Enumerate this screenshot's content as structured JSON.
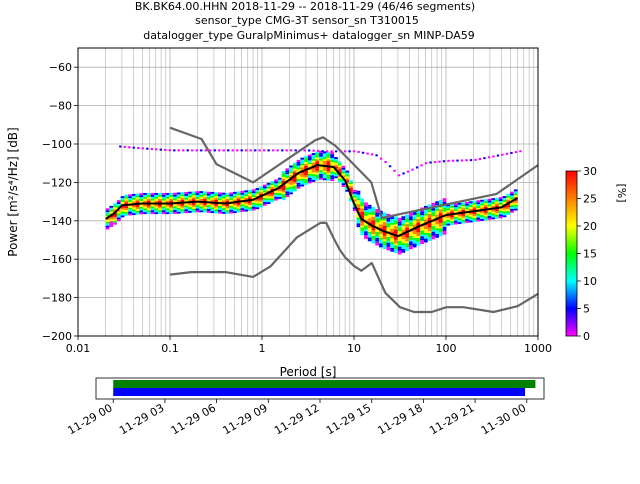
{
  "figure": {
    "title_lines": [
      "BK.BK64.00.HHN   2018-11-29 -- 2018-11-29  (46/46 segments)",
      "sensor_type CMG-3T sensor_sn T310015",
      "datalogger_type GuralpMinimus+ datalogger_sn MINP-DA59"
    ]
  },
  "chart_data": [
    {
      "type": "heatmap",
      "title": "BK.BK64.00.HHN   2018-11-29 -- 2018-11-29  (46/46 segments)",
      "xlabel": "Period [s]",
      "ylabel": "Power [m²/s⁴/Hz] [dB]",
      "x_scale": "log",
      "xlim": [
        0.01,
        1000
      ],
      "ylim": [
        -200,
        -50
      ],
      "x_ticks": [
        0.01,
        0.1,
        1,
        10,
        100,
        1000
      ],
      "x_tick_labels": [
        "0.01",
        "0.1",
        "1",
        "10",
        "100",
        "1000"
      ],
      "y_ticks": [
        -200,
        -180,
        -160,
        -140,
        -120,
        -100,
        -80,
        -60
      ],
      "y_tick_labels": [
        "−200",
        "−180",
        "−160",
        "−140",
        "−120",
        "−100",
        "−80",
        "−60"
      ],
      "grid": true,
      "colorbar": {
        "label": "[%]",
        "range": [
          0,
          30
        ],
        "ticks": [
          0,
          5,
          10,
          15,
          20,
          25,
          30
        ],
        "colormap": [
          "#ffffff",
          "#ff00ff",
          "#0000ff",
          "#00ffff",
          "#00ff00",
          "#ffff00",
          "#ff8000",
          "#ff0000"
        ]
      },
      "series": [
        {
          "name": "NHNM",
          "color": "#666666",
          "x": [
            0.1,
            0.22,
            0.32,
            0.8,
            3.8,
            4.6,
            6.3,
            15.4,
            20,
            354.8,
            1000
          ],
          "y": [
            -91.5,
            -97.4,
            -110.5,
            -120,
            -98,
            -96.5,
            -101,
            -120,
            -138.5,
            -126,
            -111
          ]
        },
        {
          "name": "NLNM",
          "color": "#666666",
          "x": [
            0.1,
            0.17,
            0.4,
            0.8,
            1.24,
            2.4,
            4.3,
            5,
            6,
            7,
            8,
            10,
            12,
            15.6,
            21.9,
            31.6,
            45,
            70,
            101,
            154,
            328,
            600,
            1000
          ],
          "y": [
            -168,
            -166.7,
            -166.7,
            -169.2,
            -163.7,
            -148.6,
            -141.1,
            -141.1,
            -149,
            -155,
            -159,
            -163.5,
            -166,
            -162,
            -177.5,
            -185,
            -187.5,
            -187.5,
            -185,
            -185,
            -187.5,
            -184.5,
            -178
          ]
        },
        {
          "name": "mean",
          "color": "#000000",
          "x": [
            0.02,
            0.025,
            0.03,
            0.05,
            0.1,
            0.2,
            0.4,
            0.8,
            1.5,
            2.5,
            4,
            6,
            8,
            10,
            12,
            15,
            20,
            30,
            50,
            100,
            200,
            400,
            600
          ],
          "y": [
            -139,
            -136,
            -132,
            -131,
            -131,
            -130,
            -131,
            -129,
            -123,
            -115,
            -111,
            -112,
            -119,
            -131,
            -139,
            -142,
            -145,
            -148,
            -143,
            -137,
            -135,
            -133,
            -128
          ]
        }
      ],
      "mode_band": {
        "x": [
          0.02,
          0.025,
          0.03,
          0.05,
          0.1,
          0.2,
          0.4,
          0.8,
          1.5,
          2.5,
          4,
          6,
          8,
          10,
          12,
          15,
          20,
          30,
          50,
          100,
          200,
          400,
          600
        ],
        "y": [
          -139,
          -136,
          -132,
          -131,
          -131,
          -130,
          -131,
          -129,
          -123,
          -115,
          -111,
          -112,
          -119,
          -131,
          -139,
          -142,
          -145,
          -148,
          -143,
          -137,
          -135,
          -133,
          -128
        ]
      },
      "upper_trace": {
        "x": [
          0.028,
          0.05,
          0.1,
          0.3,
          1,
          3,
          5,
          10,
          17,
          22,
          30,
          40,
          60,
          100,
          200,
          700
        ],
        "y": [
          -101.5,
          -102.5,
          -103.5,
          -103.5,
          -103.5,
          -103.5,
          -104,
          -104,
          -106,
          -110,
          -116.5,
          -114,
          -110,
          -109,
          -108.5,
          -103.5
        ]
      }
    },
    {
      "type": "bar",
      "title": "",
      "xlabel": "",
      "xlim_hours": [
        -1,
        25
      ],
      "tick_labels": [
        "11-29 00",
        "11-29 03",
        "11-29 06",
        "11-29 09",
        "11-29 12",
        "11-29 15",
        "11-29 18",
        "11-29 21",
        "11-30 00"
      ],
      "series": [
        {
          "color": "#008000",
          "start_hour": 0,
          "end_hour": 24.5
        },
        {
          "color": "#0000ff",
          "start_hour": 0,
          "end_hour": 23.9
        }
      ]
    }
  ]
}
